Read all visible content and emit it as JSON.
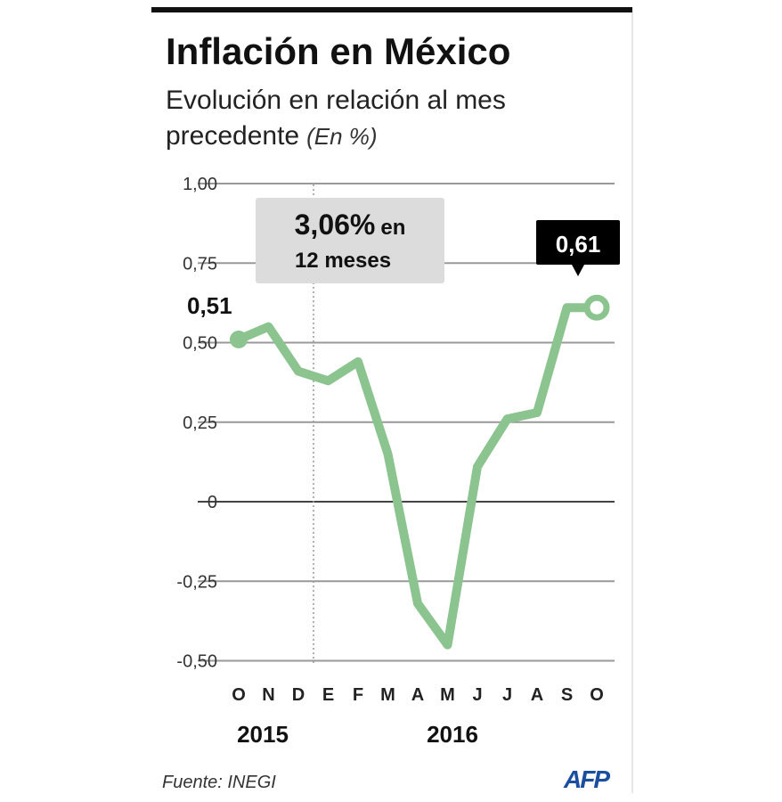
{
  "chart_data": {
    "type": "line",
    "title": "Inflación en México",
    "subtitle_line1": "Evolución en relación al mes",
    "subtitle_line2": "precedente",
    "unit": "(En %)",
    "categories": [
      "O",
      "N",
      "D",
      "E",
      "F",
      "M",
      "A",
      "M",
      "J",
      "J",
      "A",
      "S",
      "O"
    ],
    "year_labels": [
      "2015",
      "2016"
    ],
    "values": [
      0.51,
      0.55,
      0.41,
      0.38,
      0.44,
      0.15,
      -0.32,
      -0.45,
      0.11,
      0.26,
      0.28,
      0.61,
      0.61
    ],
    "ylim": [
      -0.5,
      1.0
    ],
    "yticks": [
      1.0,
      0.75,
      0.5,
      0.25,
      0,
      -0.25,
      -0.5
    ],
    "ytick_labels": [
      "1,00",
      "0,75",
      "0,50",
      "0,25",
      "0",
      "-0,25",
      "-0,50"
    ],
    "grid": true,
    "line_color": "#8cc490",
    "annotations": {
      "start_label": "0,51",
      "end_label": "0,61",
      "box_line1_big": "3,06%",
      "box_line1_small": "en",
      "box_line2": "12 meses"
    },
    "source": "Fuente: INEGI",
    "logo": "AFP"
  }
}
